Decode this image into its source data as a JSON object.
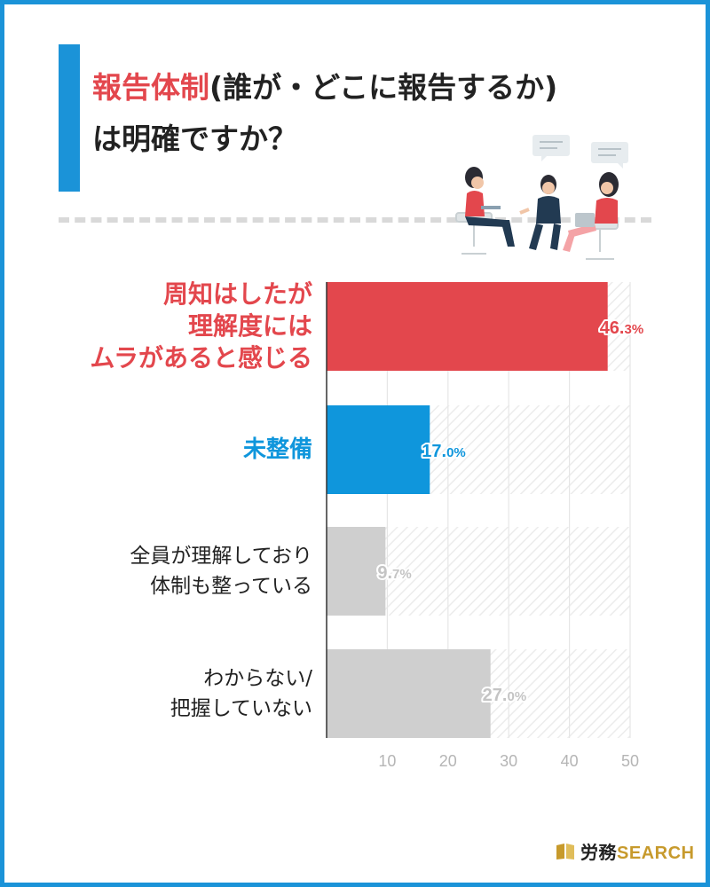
{
  "title": {
    "line1_accent": "報告体制",
    "line1_rest": "(誰が・どこに報告するか)",
    "line2": "は明確ですか？"
  },
  "brand": {
    "prefix": "労務",
    "suffix": "SEARCH"
  },
  "colors": {
    "frame": "#1b93d8",
    "red": "#e3474d",
    "blue": "#0f96dc",
    "gray": "#cfcfcf",
    "gray_text": "#c4c4c4",
    "dark_text": "#222222"
  },
  "chart_data": {
    "type": "bar",
    "orientation": "horizontal",
    "categories": [
      "周知はしたが理解度にはムラがあると感じる",
      "未整備",
      "全員が理解しており体制も整っている",
      "わからない/把握していない"
    ],
    "category_lines": [
      [
        "周知はしたが",
        "理解度には",
        "ムラがあると感じる"
      ],
      [
        "未整備"
      ],
      [
        "全員が理解しており",
        "体制も整っている"
      ],
      [
        "わからない/",
        "把握していない"
      ]
    ],
    "values": [
      46.3,
      17.0,
      9.7,
      27.0
    ],
    "value_labels": [
      "46.3%",
      "17.0%",
      "9.7%",
      "27.0%"
    ],
    "bar_colors": [
      "#e3474d",
      "#0f96dc",
      "#cfcfcf",
      "#cfcfcf"
    ],
    "label_colors": [
      "#e3474d",
      "#0f96dc",
      "#222222",
      "#222222"
    ],
    "value_label_colors": [
      "#e3474d",
      "#0f96dc",
      "#c4c4c4",
      "#c4c4c4"
    ],
    "xlim": [
      0,
      50
    ],
    "xticks": [
      10,
      20,
      30,
      40,
      50
    ],
    "xtick_labels": [
      "10",
      "20",
      "30",
      "40",
      "50"
    ],
    "grid": true
  }
}
